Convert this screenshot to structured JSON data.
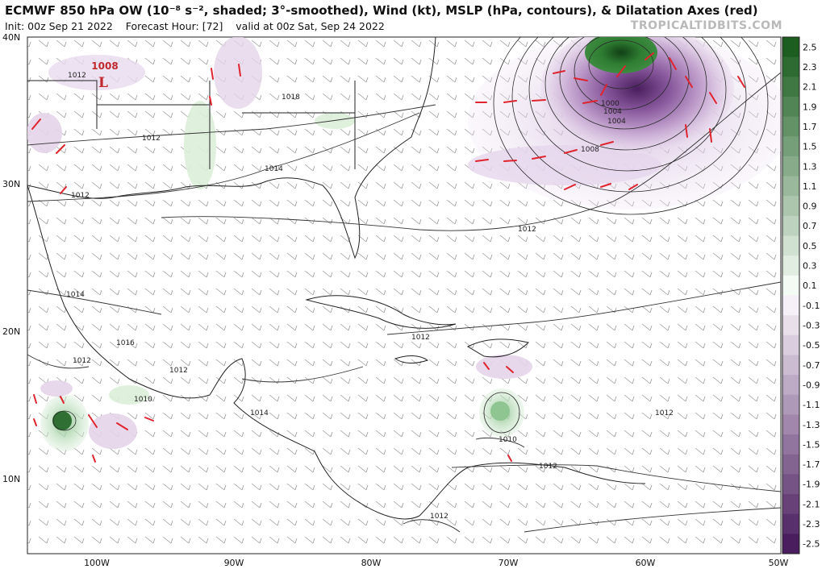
{
  "header": {
    "title": "ECMWF 850 hPa OW (10⁻⁸ s⁻², shaded; 3°-smoothed), Wind (kt), MSLP (hPa, contours), & Dilatation Axes (red)",
    "init": "Init: 00z Sep 21 2022",
    "forecast_hour": "Forecast Hour: [72]",
    "valid": "valid at 00z Sat, Sep 24 2022",
    "watermark": "TROPICALTIDBITS.COM"
  },
  "map": {
    "lat_labels": [
      "40N",
      "30N",
      "20N",
      "10N"
    ],
    "lon_labels": [
      "100W",
      "90W",
      "80W",
      "70W",
      "60W",
      "50W"
    ],
    "low_center": {
      "pressure": "1008",
      "symbol": "L"
    },
    "isobar_labels": [
      "1018",
      "1012",
      "1014",
      "1012",
      "1012",
      "1014",
      "1016",
      "1012",
      "1012",
      "1010",
      "1014",
      "1012",
      "1010",
      "1012",
      "1012",
      "1012",
      "1000",
      "1004",
      "1008",
      "1004",
      "1012"
    ]
  },
  "colorbar": {
    "ticks": [
      "2.5",
      "2.3",
      "2.1",
      "1.9",
      "1.7",
      "1.5",
      "1.3",
      "1.1",
      "0.9",
      "0.7",
      "0.5",
      "0.3",
      "0.1",
      "-0.1",
      "-0.3",
      "-0.5",
      "-0.7",
      "-0.9",
      "-1.1",
      "-1.3",
      "-1.5",
      "-1.7",
      "-1.9",
      "-2.1",
      "-2.3",
      "-2.5"
    ],
    "positive_color": "#1b5e20",
    "negative_color": "#4a1e5e"
  },
  "colors": {
    "dilatation_axes": "#e0242e",
    "contours": "#333333",
    "land": "#ffffff"
  }
}
